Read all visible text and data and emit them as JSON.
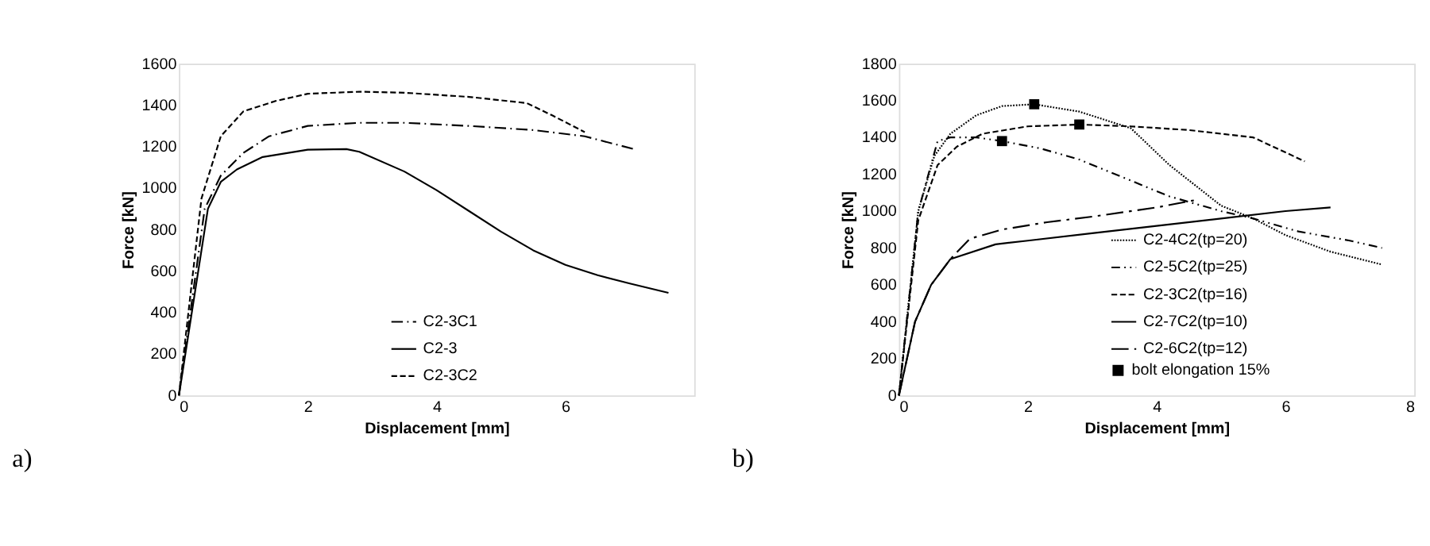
{
  "chart_data": [
    {
      "type": "line",
      "xlabel": "Displacement [mm]",
      "ylabel": "Force [kN]",
      "annotations": [
        "a)"
      ],
      "xlim": [
        0,
        8
      ],
      "xticks": [
        0,
        2,
        4,
        6
      ],
      "ylim": [
        0,
        1600
      ],
      "yticks": [
        0,
        200,
        400,
        600,
        800,
        1000,
        1200,
        1400,
        1600
      ],
      "grid": false,
      "legend": "bottom right",
      "series": [
        {
          "name": "C2-3C1",
          "color": "#000000",
          "line_style": "dashdot",
          "x": [
            0,
            0.4,
            0.65,
            1,
            1.4,
            2,
            2.8,
            3.5,
            4.5,
            5.5,
            6.3,
            7.1
          ],
          "values": [
            0,
            900,
            1060,
            1170,
            1250,
            1300,
            1315,
            1315,
            1300,
            1280,
            1250,
            1185
          ]
        },
        {
          "name": "C2-3",
          "color": "#000000",
          "line_style": "solid",
          "x": [
            0,
            0.45,
            0.65,
            0.9,
            1.3,
            2,
            2.6,
            2.8,
            3.5,
            4,
            4.5,
            5,
            5.5,
            6,
            6.5,
            7,
            7.6
          ],
          "values": [
            0,
            900,
            1030,
            1090,
            1150,
            1185,
            1188,
            1175,
            1080,
            990,
            890,
            790,
            700,
            630,
            580,
            540,
            495
          ]
        },
        {
          "name": "C2-3C2",
          "color": "#000000",
          "line_style": "dashed",
          "x": [
            0,
            0.35,
            0.65,
            1,
            1.5,
            2,
            2.8,
            3.5,
            4.5,
            5.4,
            5.8,
            6.3
          ],
          "values": [
            0,
            950,
            1250,
            1370,
            1420,
            1455,
            1465,
            1460,
            1440,
            1410,
            1350,
            1270
          ]
        }
      ]
    },
    {
      "type": "line",
      "xlabel": "Displacement [mm]",
      "ylabel": "Force [kN]",
      "annotations": [
        "b)"
      ],
      "xlim": [
        0,
        8
      ],
      "xticks": [
        0,
        2,
        4,
        6,
        8
      ],
      "ylim": [
        0,
        1800
      ],
      "yticks": [
        0,
        200,
        400,
        600,
        800,
        1000,
        1200,
        1400,
        1600,
        1800
      ],
      "grid": false,
      "legend": "bottom right",
      "series": [
        {
          "name": "C2-4C2(tp=20)",
          "color": "#000000",
          "line_style": "dotted",
          "x": [
            0,
            0.3,
            0.55,
            0.8,
            1.2,
            1.6,
            2.1,
            2.8,
            3.6,
            4.2,
            5,
            5.5,
            6,
            6.7,
            7.5
          ],
          "values": [
            0,
            1000,
            1300,
            1420,
            1520,
            1570,
            1580,
            1540,
            1450,
            1250,
            1030,
            960,
            870,
            780,
            710
          ]
        },
        {
          "name": "C2-5C2(tp=25)",
          "color": "#000000",
          "line_style": "dashdotdot",
          "x": [
            0,
            0.3,
            0.6,
            0.8,
            1.2,
            1.6,
            2.2,
            2.8,
            3.5,
            4.2,
            5,
            5.5,
            6.2,
            7,
            7.5
          ],
          "values": [
            0,
            1000,
            1380,
            1400,
            1400,
            1380,
            1340,
            1280,
            1180,
            1080,
            1000,
            960,
            890,
            840,
            800
          ]
        },
        {
          "name": "C2-3C2(tp=16)",
          "color": "#000000",
          "line_style": "dashed",
          "x": [
            0,
            0.3,
            0.6,
            0.9,
            1.3,
            2,
            2.8,
            3.6,
            4.5,
            5.5,
            6.3
          ],
          "values": [
            0,
            950,
            1250,
            1350,
            1420,
            1460,
            1470,
            1460,
            1440,
            1400,
            1270
          ]
        },
        {
          "name": "C2-7C2(tp=10)",
          "color": "#000000",
          "line_style": "solid",
          "x": [
            0,
            0.25,
            0.5,
            0.8,
            1.5,
            2,
            3,
            4,
            5,
            6,
            6.7
          ],
          "values": [
            0,
            400,
            600,
            740,
            820,
            840,
            880,
            920,
            960,
            1000,
            1020
          ]
        },
        {
          "name": "C2-6C2(tp=12)",
          "color": "#000000",
          "line_style": "longdashdot",
          "x": [
            0,
            0.25,
            0.5,
            0.8,
            1.1,
            1.6,
            2.3,
            3,
            4,
            4.6
          ],
          "values": [
            0,
            400,
            600,
            740,
            850,
            900,
            940,
            970,
            1020,
            1060
          ]
        },
        {
          "name": "bolt elongation 15%",
          "color": "#000000",
          "type": "scatter",
          "marker": "square",
          "x": [
            1.6,
            2.1,
            2.8
          ],
          "values": [
            1380,
            1580,
            1470
          ]
        }
      ]
    }
  ]
}
